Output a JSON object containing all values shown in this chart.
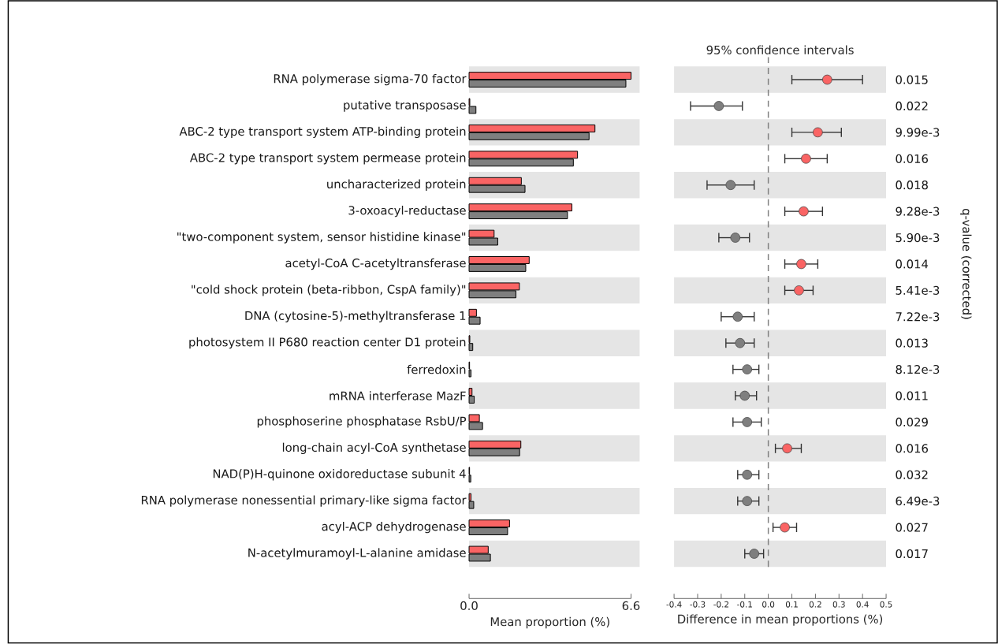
{
  "chart_data": [
    {
      "type": "bar",
      "orientation": "horizontal",
      "xlabel": "Mean proportion (%)",
      "categories": [
        "RNA polymerase sigma-70 factor",
        "putative transposase",
        "ABC-2 type transport system ATP-binding protein",
        "ABC-2 type transport system permease protein",
        "uncharacterized protein",
        "3-oxoacyl-reductase",
        "\"two-component system, sensor histidine kinase\"",
        "acetyl-CoA C-acetyltransferase",
        "\"cold shock protein (beta-ribbon, CspA family)\"",
        "DNA (cytosine-5)-methyltransferase 1",
        "photosystem II P680 reaction center D1 protein",
        "ferredoxin",
        "mRNA interferase MazF",
        "phosphoserine phosphatase RsbU/P",
        "long-chain acyl-CoA synthetase",
        "NAD(P)H-quinone oxidoreductase subunit 4",
        "RNA polymerase nonessential primary-like sigma factor",
        "acyl-ACP dehydrogenase",
        "N-acetylmuramoyl-L-alanine amidase"
      ],
      "series": [
        {
          "color": "#fa6464",
          "values": [
            6.6,
            0.03,
            5.13,
            4.42,
            2.13,
            4.19,
            1.02,
            2.45,
            2.05,
            0.3,
            0.03,
            0.02,
            0.12,
            0.42,
            2.11,
            0.02,
            0.08,
            1.65,
            0.78
          ]
        },
        {
          "color": "#7f7f7f",
          "values": [
            6.39,
            0.28,
            4.89,
            4.25,
            2.28,
            4.01,
            1.17,
            2.31,
            1.91,
            0.45,
            0.15,
            0.08,
            0.21,
            0.55,
            2.06,
            0.07,
            0.19,
            1.57,
            0.87
          ]
        }
      ],
      "xlim": [
        0,
        6.6
      ],
      "xticks": [
        {
          "value": 0,
          "label": "0.0"
        },
        6.6
      ]
    },
    {
      "type": "scatter",
      "orientation": "horizontal",
      "title": "95% confidence intervals",
      "xlabel": "Difference in mean proportions (%)",
      "y2label": "q-value (corrected)",
      "y2_categories": [
        "0.015",
        "0.022",
        "9.99e-3",
        "0.016",
        "0.018",
        "9.28e-3",
        "5.90e-3",
        "0.014",
        "5.41e-3",
        "7.22e-3",
        "0.013",
        "8.12e-3",
        "0.011",
        "0.029",
        "0.016",
        "0.032",
        "6.49e-3",
        "0.027",
        "0.017"
      ],
      "values": [
        0.25,
        -0.21,
        0.21,
        0.16,
        -0.16,
        0.15,
        -0.14,
        0.14,
        0.13,
        -0.13,
        -0.12,
        -0.09,
        -0.1,
        -0.09,
        0.08,
        -0.09,
        -0.09,
        0.07,
        -0.06
      ],
      "errors": [
        [
          0.1,
          0.4
        ],
        [
          -0.33,
          -0.11
        ],
        [
          0.1,
          0.31
        ],
        [
          0.07,
          0.25
        ],
        [
          -0.26,
          -0.06
        ],
        [
          0.07,
          0.23
        ],
        [
          -0.21,
          -0.08
        ],
        [
          0.07,
          0.21
        ],
        [
          0.07,
          0.19
        ],
        [
          -0.2,
          -0.06
        ],
        [
          -0.18,
          -0.06
        ],
        [
          -0.15,
          -0.04
        ],
        [
          -0.14,
          -0.05
        ],
        [
          -0.15,
          -0.03
        ],
        [
          0.03,
          0.14
        ],
        [
          -0.13,
          -0.04
        ],
        [
          -0.13,
          -0.04
        ],
        [
          0.02,
          0.12
        ],
        [
          -0.1,
          -0.02
        ]
      ],
      "colors": [
        "#fa6464",
        "#7f7f7f",
        "#fa6464",
        "#fa6464",
        "#7f7f7f",
        "#fa6464",
        "#7f7f7f",
        "#fa6464",
        "#fa6464",
        "#7f7f7f",
        "#7f7f7f",
        "#7f7f7f",
        "#7f7f7f",
        "#7f7f7f",
        "#fa6464",
        "#7f7f7f",
        "#7f7f7f",
        "#fa6464",
        "#7f7f7f"
      ],
      "marker": "circle",
      "ref_lines": [
        {
          "axis": "x",
          "value": 0,
          "color": "#808080",
          "line_style": "dashed"
        }
      ],
      "tick_labels": "x",
      "xlim": [
        -0.4,
        0.5
      ],
      "xticks": [
        -0.4,
        -0.3,
        -0.2,
        -0.1,
        {
          "value": 0,
          "label": "0.0"
        },
        0.1,
        0.2,
        0.3,
        0.4,
        0.5
      ]
    }
  ]
}
